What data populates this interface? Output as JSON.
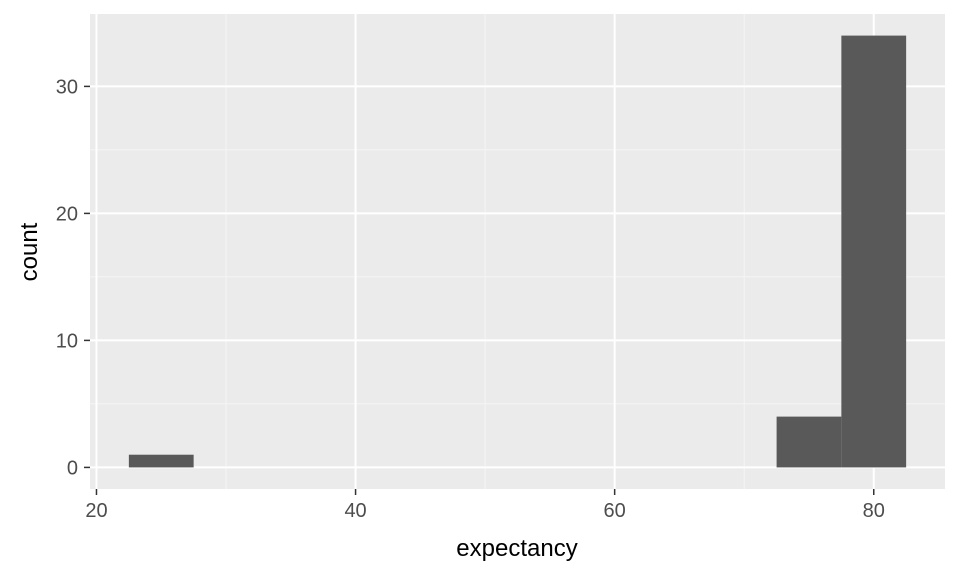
{
  "chart_data": {
    "type": "bar",
    "title": "",
    "xlabel": "expectancy",
    "ylabel": "count",
    "xlim": [
      19.5,
      85.5
    ],
    "ylim": [
      -1.7,
      35.7
    ],
    "x_ticks": [
      20,
      40,
      60,
      80
    ],
    "x_minor": [
      30,
      50,
      70
    ],
    "y_ticks": [
      0,
      10,
      20,
      30
    ],
    "y_minor": [
      5,
      15,
      25
    ],
    "grid": true,
    "legend": "none",
    "bins": [
      {
        "x0": 22.5,
        "x1": 27.5,
        "count": 1
      },
      {
        "x0": 27.5,
        "x1": 32.5,
        "count": 0
      },
      {
        "x0": 32.5,
        "x1": 37.5,
        "count": 0
      },
      {
        "x0": 37.5,
        "x1": 42.5,
        "count": 0
      },
      {
        "x0": 42.5,
        "x1": 47.5,
        "count": 0
      },
      {
        "x0": 47.5,
        "x1": 52.5,
        "count": 0
      },
      {
        "x0": 52.5,
        "x1": 57.5,
        "count": 0
      },
      {
        "x0": 57.5,
        "x1": 62.5,
        "count": 0
      },
      {
        "x0": 62.5,
        "x1": 67.5,
        "count": 0
      },
      {
        "x0": 67.5,
        "x1": 72.5,
        "count": 0
      },
      {
        "x0": 72.5,
        "x1": 77.5,
        "count": 4
      },
      {
        "x0": 77.5,
        "x1": 82.5,
        "count": 34
      }
    ],
    "colors": {
      "bar": "#595959",
      "panel": "#ebebeb",
      "grid_major": "#ffffff",
      "grid_minor": "#f5f5f5",
      "tick": "#333333"
    }
  }
}
